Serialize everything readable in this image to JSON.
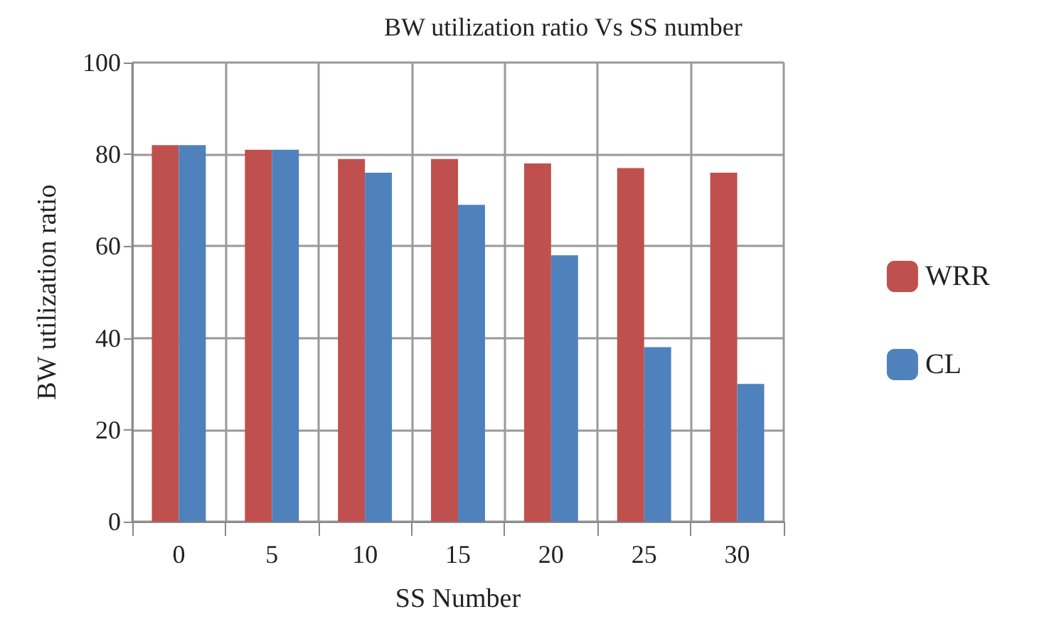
{
  "chart_data": {
    "type": "bar",
    "title": "BW utilization ratio Vs SS number",
    "xlabel": "SS Number",
    "ylabel": "BW utilization ratio",
    "categories": [
      "0",
      "5",
      "10",
      "15",
      "20",
      "25",
      "30"
    ],
    "series": [
      {
        "name": "WRR",
        "color": "#c0504d",
        "values": [
          82,
          81,
          79,
          79,
          78,
          77,
          76
        ]
      },
      {
        "name": "CL",
        "color": "#4f81bd",
        "values": [
          82,
          81,
          76,
          69,
          58,
          38,
          30
        ]
      }
    ],
    "ylim": [
      0,
      100
    ],
    "yticks": [
      0,
      20,
      40,
      60,
      80,
      100
    ],
    "grid": true,
    "legend": "right"
  }
}
